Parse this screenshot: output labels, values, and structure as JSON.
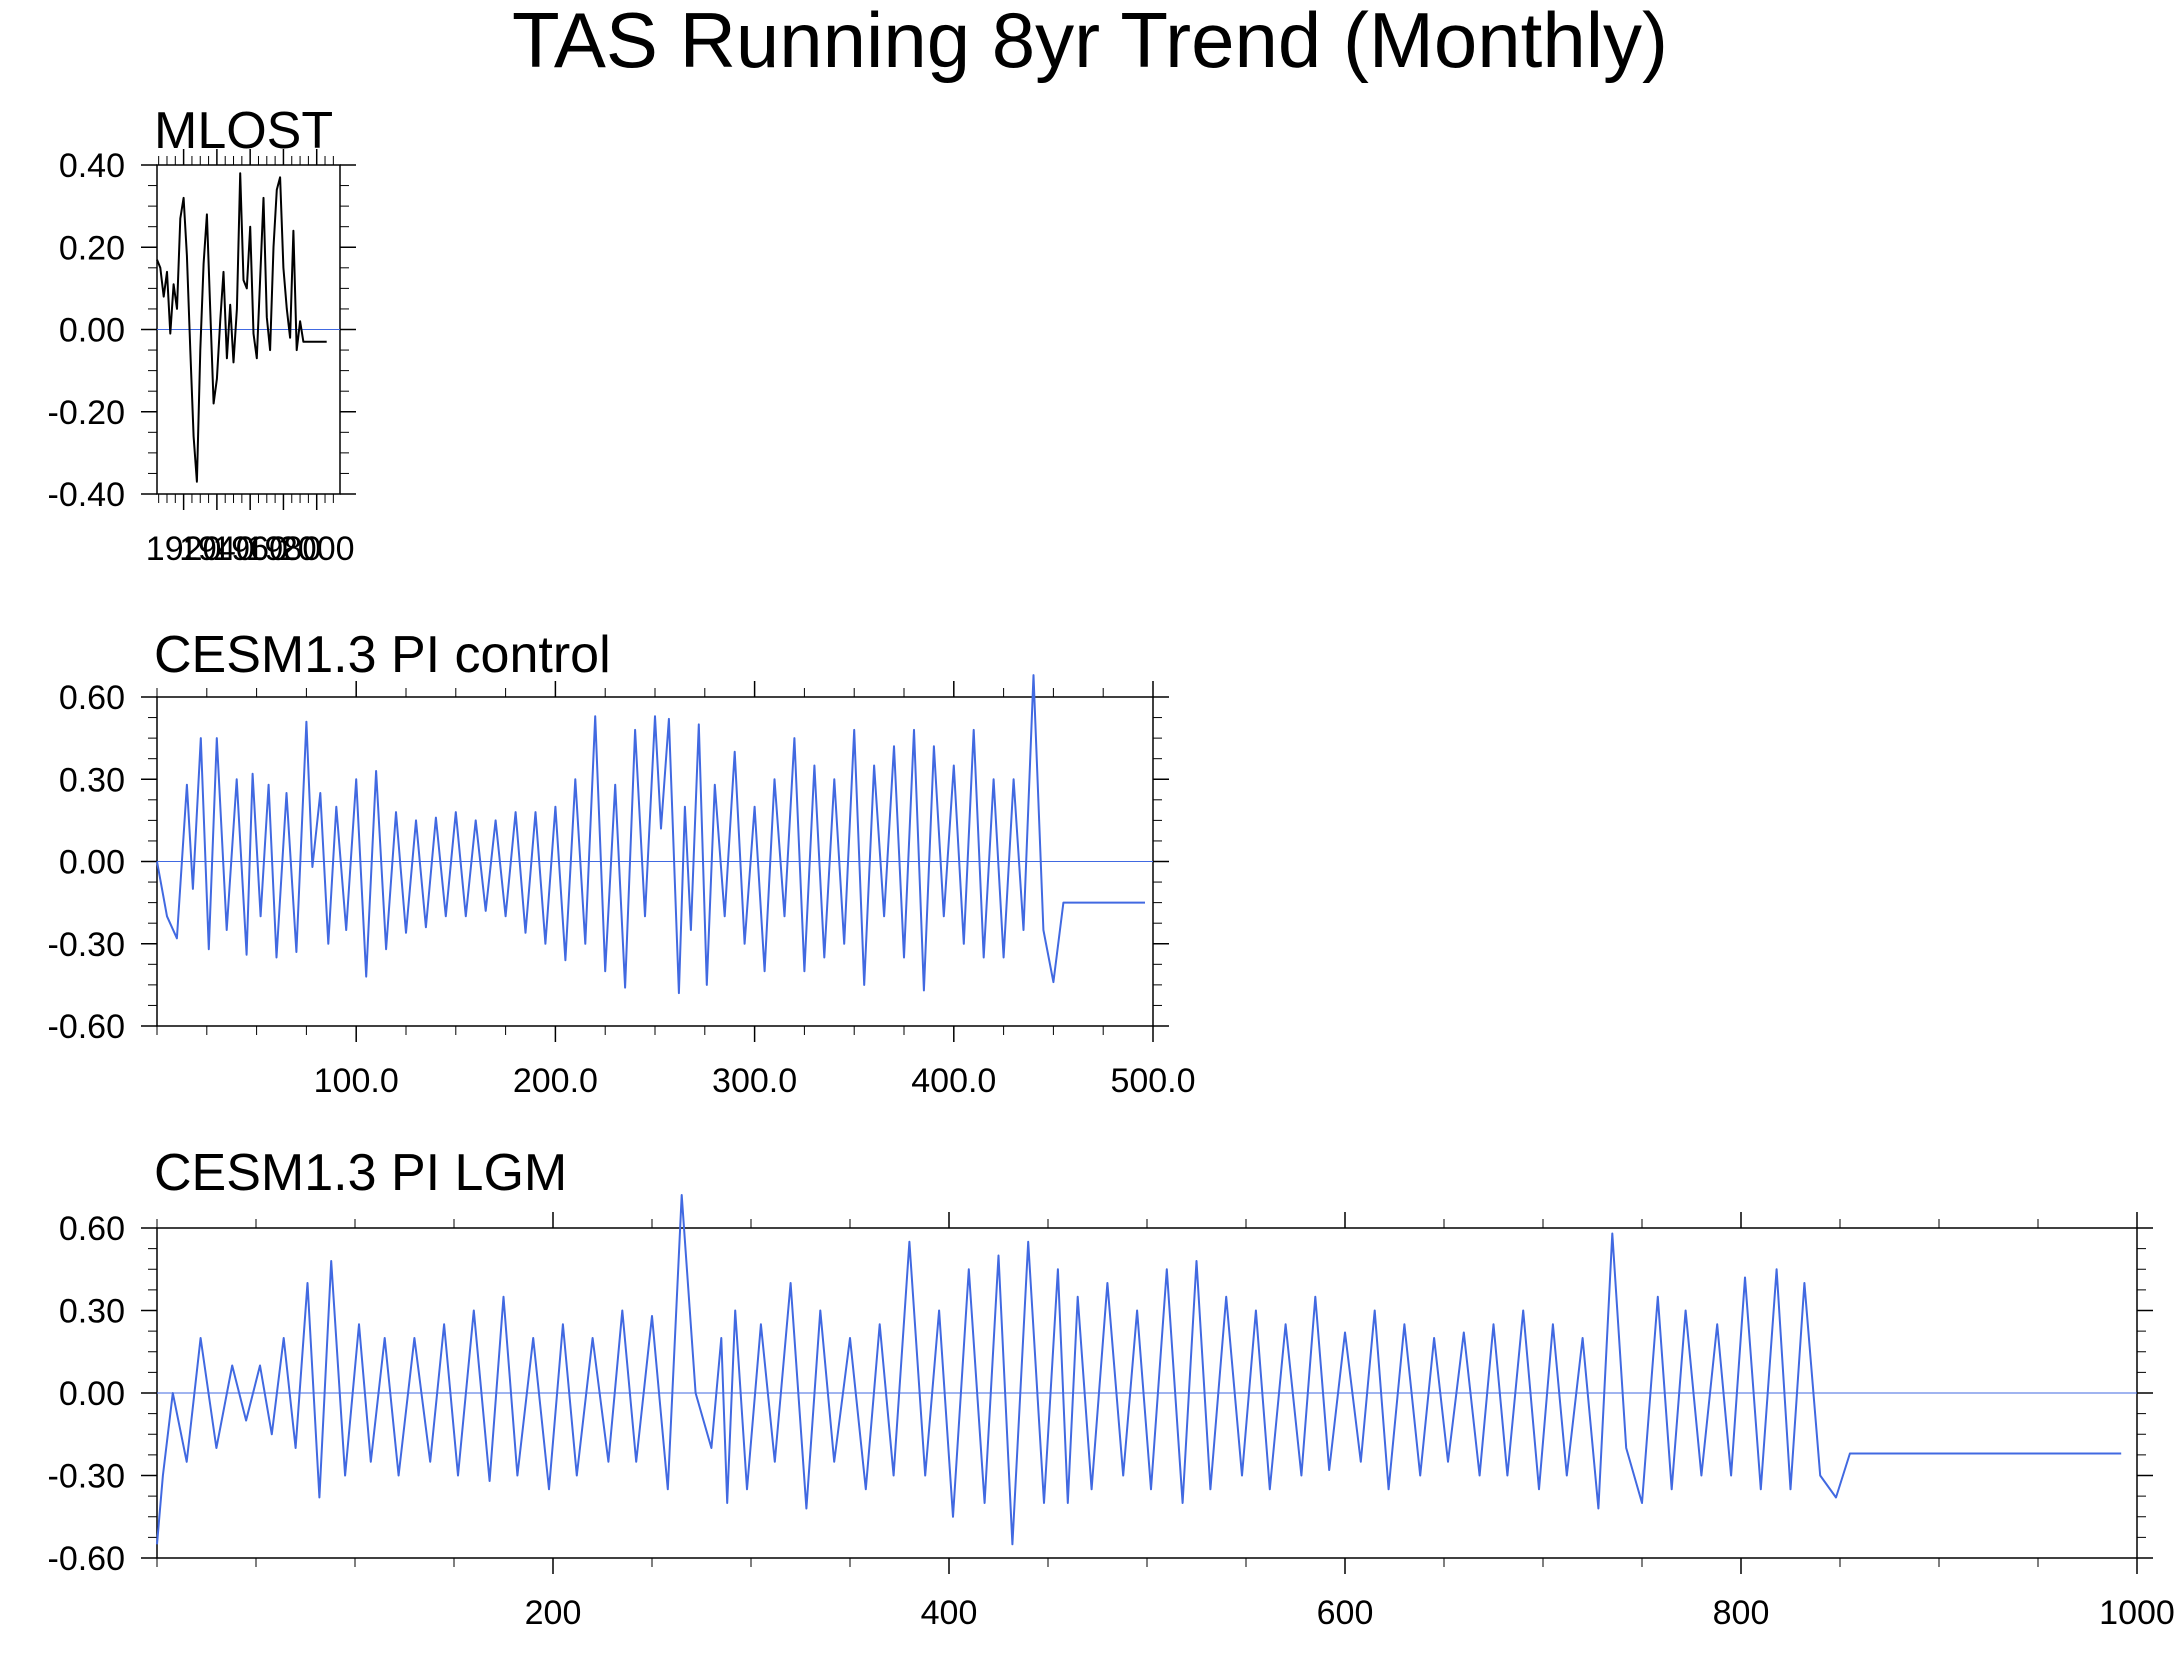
{
  "title": "TAS Running 8yr Trend (Monthly)",
  "colors": {
    "line_black": "#000000",
    "line_blue": "#4169e1",
    "zero_line": "#4169e1"
  },
  "chart_data": [
    {
      "type": "line",
      "title": "MLOST",
      "xlabel": "",
      "ylabel": "",
      "xlim": [
        1904,
        2014
      ],
      "ylim": [
        -0.4,
        0.4
      ],
      "yticks": [
        -0.4,
        -0.2,
        0.0,
        0.2,
        0.4
      ],
      "ytick_labels": [
        "-0.40",
        "-0.20",
        "0.00",
        "0.20",
        "0.40"
      ],
      "xticks": [
        1920,
        1940,
        1960,
        1980,
        2000
      ],
      "xtick_labels": [
        "1920",
        "1940",
        "1960",
        "1980",
        "2000"
      ],
      "grid": false,
      "zero_line": true,
      "series": [
        {
          "color": "#000000",
          "x": [
            1904,
            1906,
            1908,
            1910,
            1912,
            1914,
            1916,
            1918,
            1920,
            1922,
            1924,
            1926,
            1928,
            1930,
            1932,
            1934,
            1936,
            1938,
            1940,
            1942,
            1944,
            1946,
            1948,
            1950,
            1952,
            1954,
            1956,
            1958,
            1960,
            1962,
            1964,
            1966,
            1968,
            1970,
            1972,
            1974,
            1976,
            1978,
            1980,
            1982,
            1984,
            1986,
            1988,
            1990,
            1992,
            1994,
            1996,
            1998,
            2000,
            2002,
            2004,
            2006
          ],
          "values": [
            0.17,
            0.15,
            0.08,
            0.14,
            -0.01,
            0.11,
            0.05,
            0.27,
            0.32,
            0.18,
            -0.05,
            -0.26,
            -0.37,
            -0.05,
            0.16,
            0.28,
            0.05,
            -0.18,
            -0.12,
            0.02,
            0.14,
            -0.07,
            0.06,
            -0.08,
            0.05,
            0.38,
            0.12,
            0.1,
            0.25,
            -0.01,
            -0.07,
            0.12,
            0.32,
            0.03,
            -0.05,
            0.2,
            0.34,
            0.37,
            0.15,
            0.05,
            -0.02,
            0.24,
            -0.05,
            0.02,
            -0.03,
            -0.03,
            -0.03,
            -0.03,
            -0.03,
            -0.03,
            -0.03,
            -0.03
          ]
        }
      ]
    },
    {
      "type": "line",
      "title": "CESM1.3 PI control",
      "xlabel": "",
      "ylabel": "",
      "xlim": [
        0,
        500
      ],
      "ylim": [
        -0.6,
        0.6
      ],
      "yticks": [
        -0.6,
        -0.3,
        0.0,
        0.3,
        0.6
      ],
      "ytick_labels": [
        "-0.60",
        "-0.30",
        "0.00",
        "0.30",
        "0.60"
      ],
      "xticks": [
        100,
        200,
        300,
        400,
        500
      ],
      "xtick_labels": [
        "100.0",
        "200.0",
        "300.0",
        "400.0",
        "500.0"
      ],
      "grid": false,
      "zero_line": true,
      "series": [
        {
          "color": "#4169e1",
          "x": [
            0,
            5,
            10,
            15,
            18,
            22,
            26,
            30,
            35,
            40,
            45,
            48,
            52,
            56,
            60,
            65,
            70,
            75,
            78,
            82,
            86,
            90,
            95,
            100,
            105,
            110,
            115,
            120,
            125,
            130,
            135,
            140,
            145,
            150,
            155,
            160,
            165,
            170,
            175,
            180,
            185,
            190,
            195,
            200,
            205,
            210,
            215,
            220,
            225,
            230,
            235,
            240,
            245,
            250,
            253,
            257,
            262,
            265,
            268,
            272,
            276,
            280,
            285,
            290,
            295,
            300,
            305,
            310,
            315,
            320,
            325,
            330,
            335,
            340,
            345,
            350,
            355,
            360,
            365,
            370,
            375,
            380,
            385,
            390,
            395,
            400,
            405,
            410,
            415,
            420,
            425,
            430,
            435,
            440,
            445,
            450,
            455,
            460,
            465,
            470,
            475,
            480,
            484,
            488,
            492,
            496
          ],
          "values": [
            0.0,
            -0.2,
            -0.28,
            0.28,
            -0.1,
            0.45,
            -0.32,
            0.45,
            -0.25,
            0.3,
            -0.34,
            0.32,
            -0.2,
            0.28,
            -0.35,
            0.25,
            -0.33,
            0.51,
            -0.02,
            0.25,
            -0.3,
            0.2,
            -0.25,
            0.3,
            -0.42,
            0.33,
            -0.32,
            0.18,
            -0.26,
            0.15,
            -0.24,
            0.16,
            -0.2,
            0.18,
            -0.2,
            0.15,
            -0.18,
            0.15,
            -0.2,
            0.18,
            -0.26,
            0.18,
            -0.3,
            0.2,
            -0.36,
            0.3,
            -0.3,
            0.53,
            -0.4,
            0.28,
            -0.46,
            0.48,
            -0.2,
            0.53,
            0.12,
            0.52,
            -0.48,
            0.2,
            -0.25,
            0.5,
            -0.45,
            0.28,
            -0.2,
            0.4,
            -0.3,
            0.2,
            -0.4,
            0.3,
            -0.2,
            0.45,
            -0.4,
            0.35,
            -0.35,
            0.3,
            -0.3,
            0.48,
            -0.45,
            0.35,
            -0.2,
            0.42,
            -0.35,
            0.48,
            -0.47,
            0.42,
            -0.2,
            0.35,
            -0.3,
            0.48,
            -0.35,
            0.3,
            -0.35,
            0.3,
            -0.25,
            0.68,
            -0.25,
            -0.44,
            -0.15,
            -0.15,
            -0.15,
            -0.15,
            -0.15,
            -0.15,
            -0.15,
            -0.15,
            -0.15,
            -0.15
          ]
        }
      ]
    },
    {
      "type": "line",
      "title": "CESM1.3 PI LGM",
      "xlabel": "",
      "ylabel": "",
      "xlim": [
        0,
        1000
      ],
      "ylim": [
        -0.6,
        0.6
      ],
      "yticks": [
        -0.6,
        -0.3,
        0.0,
        0.3,
        0.6
      ],
      "ytick_labels": [
        "-0.60",
        "-0.30",
        "0.00",
        "0.30",
        "0.60"
      ],
      "xticks": [
        200,
        400,
        600,
        800,
        1000
      ],
      "xtick_labels": [
        "200",
        "400",
        "600",
        "800",
        "1000"
      ],
      "grid": false,
      "zero_line": true,
      "series": [
        {
          "color": "#4169e1",
          "x": [
            0,
            3,
            8,
            15,
            22,
            30,
            38,
            45,
            52,
            58,
            64,
            70,
            76,
            82,
            88,
            95,
            102,
            108,
            115,
            122,
            130,
            138,
            145,
            152,
            160,
            168,
            175,
            182,
            190,
            198,
            205,
            212,
            220,
            228,
            235,
            242,
            250,
            258,
            265,
            272,
            280,
            285,
            288,
            292,
            298,
            305,
            312,
            320,
            328,
            335,
            342,
            350,
            358,
            365,
            372,
            380,
            388,
            395,
            402,
            410,
            418,
            425,
            432,
            440,
            448,
            455,
            460,
            465,
            472,
            480,
            488,
            495,
            502,
            510,
            518,
            525,
            532,
            540,
            548,
            555,
            562,
            570,
            578,
            585,
            592,
            600,
            608,
            615,
            622,
            630,
            638,
            645,
            652,
            660,
            668,
            675,
            682,
            690,
            698,
            705,
            712,
            720,
            728,
            735,
            742,
            750,
            758,
            765,
            772,
            780,
            788,
            795,
            802,
            810,
            818,
            825,
            832,
            840,
            848,
            855,
            862,
            868,
            872,
            878,
            885,
            892,
            900,
            908,
            915,
            922,
            930,
            938,
            945,
            952,
            960,
            968,
            975,
            982,
            988,
            992
          ],
          "values": [
            -0.55,
            -0.3,
            0.0,
            -0.25,
            0.2,
            -0.2,
            0.1,
            -0.1,
            0.1,
            -0.15,
            0.2,
            -0.2,
            0.4,
            -0.38,
            0.48,
            -0.3,
            0.25,
            -0.25,
            0.2,
            -0.3,
            0.2,
            -0.25,
            0.25,
            -0.3,
            0.3,
            -0.32,
            0.35,
            -0.3,
            0.2,
            -0.35,
            0.25,
            -0.3,
            0.2,
            -0.25,
            0.3,
            -0.25,
            0.28,
            -0.35,
            0.72,
            0.0,
            -0.2,
            0.2,
            -0.4,
            0.3,
            -0.35,
            0.25,
            -0.25,
            0.4,
            -0.42,
            0.3,
            -0.25,
            0.2,
            -0.35,
            0.25,
            -0.3,
            0.55,
            -0.3,
            0.3,
            -0.45,
            0.45,
            -0.4,
            0.5,
            -0.55,
            0.55,
            -0.4,
            0.45,
            -0.4,
            0.35,
            -0.35,
            0.4,
            -0.3,
            0.3,
            -0.35,
            0.45,
            -0.4,
            0.48,
            -0.35,
            0.35,
            -0.3,
            0.3,
            -0.35,
            0.25,
            -0.3,
            0.35,
            -0.28,
            0.22,
            -0.25,
            0.3,
            -0.35,
            0.25,
            -0.3,
            0.2,
            -0.25,
            0.22,
            -0.3,
            0.25,
            -0.3,
            0.3,
            -0.35,
            0.25,
            -0.3,
            0.2,
            -0.42,
            0.58,
            -0.2,
            -0.4,
            0.35,
            -0.35,
            0.3,
            -0.3,
            0.25,
            -0.3,
            0.42,
            -0.35,
            0.45,
            -0.35,
            0.4,
            -0.3,
            -0.38,
            -0.22,
            -0.22,
            -0.22,
            -0.22,
            -0.22,
            -0.22,
            -0.22,
            -0.22,
            -0.22,
            -0.22,
            -0.22,
            -0.22,
            -0.22,
            -0.22,
            -0.22,
            -0.22,
            -0.22,
            -0.22,
            -0.22,
            -0.22,
            -0.22
          ]
        }
      ]
    }
  ]
}
